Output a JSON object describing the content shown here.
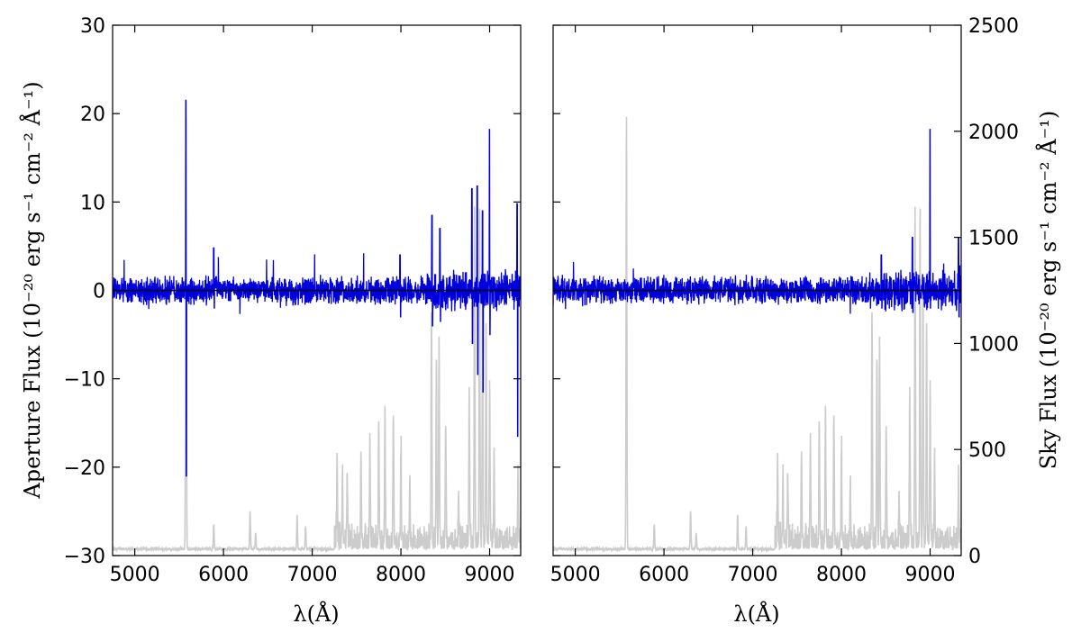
{
  "chart_data": [
    {
      "type": "line",
      "panel": "left",
      "xlabel": "λ(Å)",
      "ylabel": "Aperture Flux (10⁻²⁰ erg s⁻¹ cm⁻² Å⁻¹)",
      "xlim": [
        4750,
        9350
      ],
      "ylim": [
        -30,
        30
      ],
      "xticks": [
        "5000",
        "6000",
        "7000",
        "8000",
        "9000"
      ],
      "yticks": [
        "30",
        "20",
        "10",
        "0",
        "−10",
        "−20",
        "−30"
      ],
      "series": [
        {
          "role": "aperture flux",
          "color": "#0000dd",
          "noise_amplitude": 1.3,
          "spikes": [
            [
              5577,
              21.5,
              -21.0
            ],
            [
              5890,
              4.8,
              -2.0
            ],
            [
              7990,
              4.0,
              -3.0
            ],
            [
              8350,
              8.5,
              -4.0
            ],
            [
              8440,
              7.0,
              -3.5
            ],
            [
              8800,
              11.5,
              -6.0
            ],
            [
              8860,
              11.8,
              -9.5
            ],
            [
              8920,
              9.0,
              -11.5
            ],
            [
              8999,
              18.2,
              -5.0
            ],
            [
              9310,
              9.8,
              -16.5
            ]
          ]
        },
        {
          "role": "zero line",
          "color": "#000000",
          "y": 0
        }
      ]
    },
    {
      "type": "line",
      "panel": "right",
      "xlabel": "λ(Å)",
      "ylabel": "Sky Flux (10⁻²⁰ erg s⁻¹ cm⁻² Å⁻¹)",
      "xlim": [
        4750,
        9350
      ],
      "ylim": [
        0,
        2500
      ],
      "xticks": [
        "5000",
        "6000",
        "7000",
        "8000",
        "9000"
      ],
      "yticks": [
        "2500",
        "2000",
        "1500",
        "1000",
        "500",
        "0"
      ],
      "series": [
        {
          "role": "aperture flux",
          "color": "#0000dd",
          "noise_amplitude": 1.3,
          "spikes": [
            [
              8999,
              18.2,
              -2.0
            ],
            [
              8800,
              6.0,
              -2.5
            ],
            [
              8450,
              4.0,
              -2.0
            ],
            [
              9320,
              6.0,
              -3.0
            ]
          ]
        },
        {
          "role": "sky flux",
          "color": "#cccccc",
          "baseline": 25,
          "lines": [
            [
              5577,
              2050
            ],
            [
              5890,
              120
            ],
            [
              6300,
              180
            ],
            [
              6363,
              80
            ],
            [
              6830,
              160
            ],
            [
              6925,
              110
            ],
            [
              7280,
              400
            ],
            [
              7340,
              330
            ],
            [
              7395,
              300
            ],
            [
              7550,
              440
            ],
            [
              7650,
              480
            ],
            [
              7750,
              550
            ],
            [
              7820,
              620
            ],
            [
              7915,
              570
            ],
            [
              8000,
              460
            ],
            [
              8100,
              310
            ],
            [
              8345,
              1080
            ],
            [
              8400,
              880
            ],
            [
              8430,
              990
            ],
            [
              8505,
              560
            ],
            [
              8650,
              230
            ],
            [
              8770,
              700
            ],
            [
              8830,
              1580
            ],
            [
              8886,
              1570
            ],
            [
              8920,
              1200
            ],
            [
              8960,
              1060
            ],
            [
              9000,
              760
            ],
            [
              9050,
              430
            ],
            [
              9320,
              290
            ]
          ]
        }
      ]
    }
  ]
}
